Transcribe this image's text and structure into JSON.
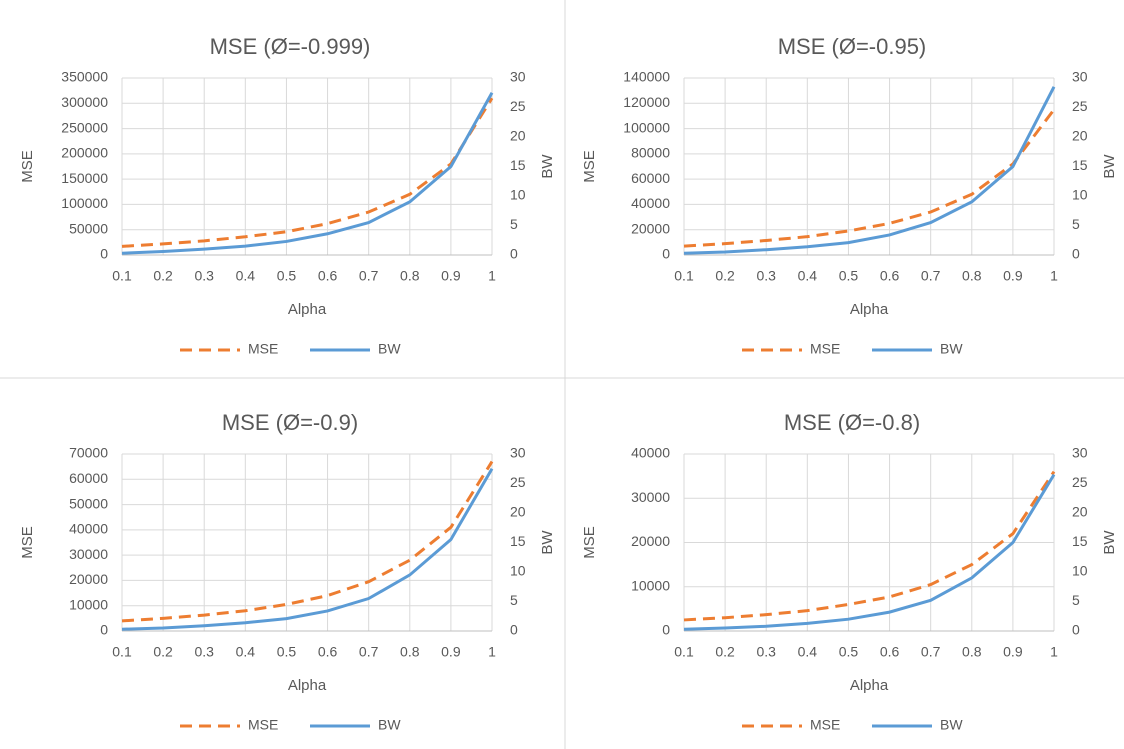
{
  "chart_data": [
    {
      "type": "line",
      "title": "MSE (Ø=-0.999)",
      "x_label": "Alpha",
      "y_label": "MSE",
      "y2_label": "BW",
      "x": [
        0.1,
        0.2,
        0.3,
        0.4,
        0.5,
        0.6,
        0.7,
        0.8,
        0.9,
        1
      ],
      "xlim": [
        0.1,
        1
      ],
      "xticks": [
        0.1,
        0.2,
        0.3,
        0.4,
        0.5,
        0.6,
        0.7,
        0.8,
        0.9,
        1
      ],
      "ylim": [
        0,
        350000
      ],
      "yticks": [
        0,
        50000,
        100000,
        150000,
        200000,
        250000,
        300000,
        350000
      ],
      "y2lim": [
        0,
        30
      ],
      "y2ticks": [
        0,
        5,
        10,
        15,
        20,
        25,
        30
      ],
      "grid": true,
      "legend": "bottom",
      "series": [
        {
          "name": "MSE",
          "color": "#ED7D31",
          "dashed": true,
          "values": [
            17000,
            22000,
            28000,
            36000,
            46000,
            62000,
            85000,
            120000,
            180000,
            310000
          ]
        },
        {
          "name": "BW",
          "color": "#5B9BD5",
          "axis": "y2",
          "values": [
            0.3,
            0.6,
            1.0,
            1.5,
            2.3,
            3.6,
            5.5,
            9,
            15,
            27.5
          ]
        }
      ]
    },
    {
      "type": "line",
      "title": "MSE (Ø=-0.95)",
      "x_label": "Alpha",
      "y_label": "MSE",
      "y2_label": "BW",
      "x": [
        0.1,
        0.2,
        0.3,
        0.4,
        0.5,
        0.6,
        0.7,
        0.8,
        0.9,
        1
      ],
      "xlim": [
        0.1,
        1
      ],
      "xticks": [
        0.1,
        0.2,
        0.3,
        0.4,
        0.5,
        0.6,
        0.7,
        0.8,
        0.9,
        1
      ],
      "ylim": [
        0,
        140000
      ],
      "yticks": [
        0,
        20000,
        40000,
        60000,
        80000,
        100000,
        120000,
        140000
      ],
      "y2lim": [
        0,
        30
      ],
      "y2ticks": [
        0,
        5,
        10,
        15,
        20,
        25,
        30
      ],
      "grid": true,
      "legend": "bottom",
      "series": [
        {
          "name": "MSE",
          "color": "#ED7D31",
          "dashed": true,
          "values": [
            7000,
            9000,
            11500,
            14500,
            19000,
            25000,
            34000,
            48000,
            72000,
            115000
          ]
        },
        {
          "name": "BW",
          "color": "#5B9BD5",
          "axis": "y2",
          "values": [
            0.3,
            0.5,
            0.9,
            1.4,
            2.1,
            3.4,
            5.5,
            9,
            15,
            28.5
          ]
        }
      ]
    },
    {
      "type": "line",
      "title": "MSE (Ø=-0.9)",
      "x_label": "Alpha",
      "y_label": "MSE",
      "y2_label": "BW",
      "x": [
        0.1,
        0.2,
        0.3,
        0.4,
        0.5,
        0.6,
        0.7,
        0.8,
        0.9,
        1
      ],
      "xlim": [
        0.1,
        1
      ],
      "xticks": [
        0.1,
        0.2,
        0.3,
        0.4,
        0.5,
        0.6,
        0.7,
        0.8,
        0.9,
        1
      ],
      "ylim": [
        0,
        70000
      ],
      "yticks": [
        0,
        10000,
        20000,
        30000,
        40000,
        50000,
        60000,
        70000
      ],
      "y2lim": [
        0,
        30
      ],
      "y2ticks": [
        0,
        5,
        10,
        15,
        20,
        25,
        30
      ],
      "grid": true,
      "legend": "bottom",
      "series": [
        {
          "name": "MSE",
          "color": "#ED7D31",
          "dashed": true,
          "values": [
            4000,
            5000,
            6300,
            8000,
            10500,
            14000,
            19500,
            28000,
            41000,
            67000
          ]
        },
        {
          "name": "BW",
          "color": "#5B9BD5",
          "axis": "y2",
          "values": [
            0.3,
            0.5,
            0.9,
            1.4,
            2.1,
            3.4,
            5.5,
            9.5,
            15.5,
            27.5
          ]
        }
      ]
    },
    {
      "type": "line",
      "title": "MSE (Ø=-0.8)",
      "x_label": "Alpha",
      "y_label": "MSE",
      "y2_label": "BW",
      "x": [
        0.1,
        0.2,
        0.3,
        0.4,
        0.5,
        0.6,
        0.7,
        0.8,
        0.9,
        1
      ],
      "xlim": [
        0.1,
        1
      ],
      "xticks": [
        0.1,
        0.2,
        0.3,
        0.4,
        0.5,
        0.6,
        0.7,
        0.8,
        0.9,
        1
      ],
      "ylim": [
        0,
        40000
      ],
      "yticks": [
        0,
        10000,
        20000,
        30000,
        40000
      ],
      "y2lim": [
        0,
        30
      ],
      "y2ticks": [
        0,
        5,
        10,
        15,
        20,
        25,
        30
      ],
      "grid": true,
      "legend": "bottom",
      "series": [
        {
          "name": "MSE",
          "color": "#ED7D31",
          "dashed": true,
          "values": [
            2500,
            3000,
            3700,
            4600,
            6000,
            7700,
            10500,
            15000,
            22000,
            36000
          ]
        },
        {
          "name": "BW",
          "color": "#5B9BD5",
          "axis": "y2",
          "values": [
            0.3,
            0.5,
            0.8,
            1.3,
            2,
            3.2,
            5.2,
            9,
            15,
            26.5
          ]
        }
      ]
    }
  ]
}
